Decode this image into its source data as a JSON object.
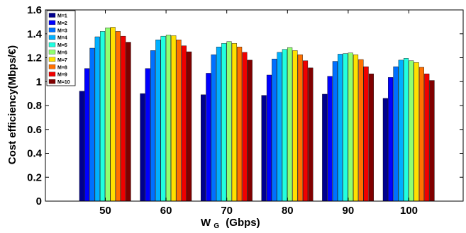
{
  "chart_data": {
    "type": "bar",
    "categories": [
      "50",
      "60",
      "70",
      "80",
      "90",
      "100"
    ],
    "series": [
      {
        "name": "M=1",
        "color": "#00008f",
        "values": [
          0.92,
          0.9,
          0.89,
          0.885,
          0.895,
          0.86
        ]
      },
      {
        "name": "M=2",
        "color": "#0000ff",
        "values": [
          1.11,
          1.11,
          1.07,
          1.055,
          1.045,
          1.035
        ]
      },
      {
        "name": "M=3",
        "color": "#0070ff",
        "values": [
          1.28,
          1.26,
          1.225,
          1.19,
          1.17,
          1.125
        ]
      },
      {
        "name": "M=4",
        "color": "#00b0ff",
        "values": [
          1.375,
          1.35,
          1.29,
          1.245,
          1.23,
          1.18
        ]
      },
      {
        "name": "M=5",
        "color": "#20ffe0",
        "values": [
          1.42,
          1.38,
          1.32,
          1.27,
          1.235,
          1.195
        ]
      },
      {
        "name": "M=6",
        "color": "#90ff70",
        "values": [
          1.45,
          1.39,
          1.335,
          1.285,
          1.24,
          1.175
        ]
      },
      {
        "name": "M=7",
        "color": "#ffe000",
        "values": [
          1.455,
          1.385,
          1.32,
          1.26,
          1.225,
          1.16
        ]
      },
      {
        "name": "M=8",
        "color": "#ff7000",
        "values": [
          1.42,
          1.35,
          1.29,
          1.225,
          1.185,
          1.12
        ]
      },
      {
        "name": "M=9",
        "color": "#f00000",
        "values": [
          1.38,
          1.3,
          1.245,
          1.175,
          1.125,
          1.065
        ]
      },
      {
        "name": "M=10",
        "color": "#800000",
        "values": [
          1.33,
          1.25,
          1.18,
          1.115,
          1.065,
          1.01
        ]
      }
    ],
    "xlabel": "W",
    "xlabel_sub": "G",
    "xlabel_unit": "(Gbps)",
    "ylabel": "Cost efficiency(Mbps/€)",
    "ylim": [
      0,
      1.6
    ],
    "yticks": [
      "0",
      "0.2",
      "0.4",
      "0.6",
      "0.8",
      "1",
      "1.2",
      "1.4",
      "1.6"
    ],
    "legend_position": "top-left",
    "grid": false
  }
}
